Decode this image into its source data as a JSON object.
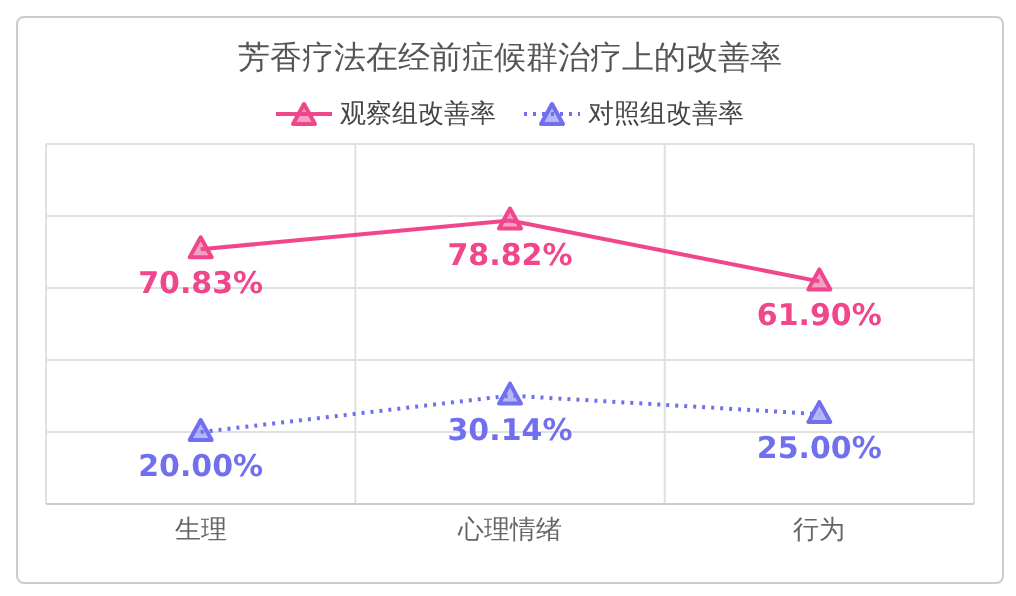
{
  "chart_data": {
    "type": "line",
    "title": "芳香疗法在经前症候群治疗上的改善率",
    "categories": [
      "生理",
      "心理情绪",
      "行为"
    ],
    "series": [
      {
        "name": "观察组改善率",
        "color": "#f0468c",
        "values": [
          70.83,
          78.82,
          61.9
        ],
        "value_labels": [
          "70.83%",
          "78.82%",
          "61.90%"
        ],
        "line_style": "solid"
      },
      {
        "name": "对照组改善率",
        "color": "#7070ee",
        "values": [
          20,
          30.14,
          25
        ],
        "value_labels": [
          "20.00%",
          "30.14%",
          "25.00%"
        ],
        "line_style": "dotted"
      }
    ],
    "tick_labels": "x",
    "grid": true,
    "legend": "top",
    "marker": "triangle"
  }
}
